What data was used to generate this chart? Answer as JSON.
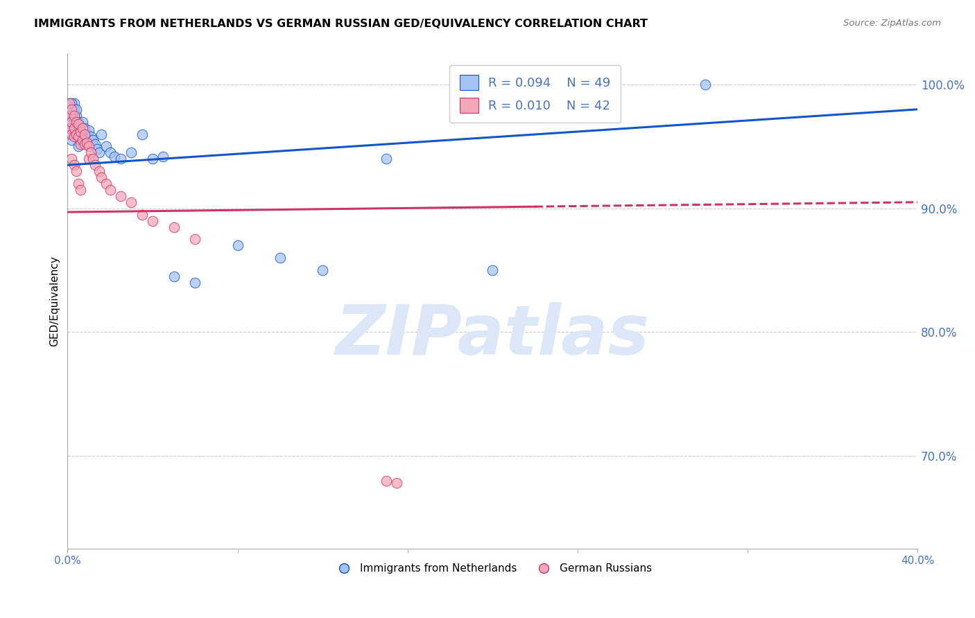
{
  "title": "IMMIGRANTS FROM NETHERLANDS VS GERMAN RUSSIAN GED/EQUIVALENCY CORRELATION CHART",
  "source": "Source: ZipAtlas.com",
  "ylabel": "GED/Equivalency",
  "legend_blue_r": "R = 0.094",
  "legend_blue_n": "N = 49",
  "legend_pink_r": "R = 0.010",
  "legend_pink_n": "N = 42",
  "legend_label_blue": "Immigrants from Netherlands",
  "legend_label_pink": "German Russians",
  "blue_color": "#a4c2f4",
  "pink_color": "#f4a7b9",
  "trend_blue_color": "#1155cc",
  "trend_pink_color": "#cc3366",
  "background_color": "#ffffff",
  "blue_scatter_x": [
    0.001,
    0.001,
    0.002,
    0.002,
    0.002,
    0.003,
    0.003,
    0.003,
    0.004,
    0.004,
    0.005,
    0.005,
    0.005,
    0.006,
    0.006,
    0.007,
    0.007,
    0.008,
    0.008,
    0.009,
    0.009,
    0.01,
    0.01,
    0.011,
    0.012,
    0.013,
    0.014,
    0.015,
    0.016,
    0.018,
    0.02,
    0.022,
    0.025,
    0.03,
    0.035,
    0.04,
    0.045,
    0.05,
    0.06,
    0.08,
    0.1,
    0.12,
    0.15,
    0.2,
    0.001,
    0.002,
    0.003,
    0.004,
    0.3
  ],
  "blue_scatter_y": [
    0.97,
    0.96,
    0.975,
    0.965,
    0.955,
    0.985,
    0.975,
    0.965,
    0.975,
    0.965,
    0.97,
    0.96,
    0.95,
    0.965,
    0.955,
    0.97,
    0.96,
    0.965,
    0.958,
    0.96,
    0.952,
    0.963,
    0.955,
    0.958,
    0.955,
    0.952,
    0.948,
    0.945,
    0.96,
    0.95,
    0.945,
    0.942,
    0.94,
    0.945,
    0.96,
    0.94,
    0.942,
    0.845,
    0.84,
    0.87,
    0.86,
    0.85,
    0.94,
    0.85,
    0.985,
    0.985,
    0.98,
    0.98,
    1.0
  ],
  "pink_scatter_x": [
    0.001,
    0.001,
    0.001,
    0.002,
    0.002,
    0.002,
    0.003,
    0.003,
    0.003,
    0.004,
    0.004,
    0.005,
    0.005,
    0.006,
    0.006,
    0.007,
    0.007,
    0.008,
    0.008,
    0.009,
    0.01,
    0.01,
    0.011,
    0.012,
    0.013,
    0.015,
    0.016,
    0.018,
    0.02,
    0.025,
    0.03,
    0.035,
    0.04,
    0.05,
    0.06,
    0.15,
    0.155,
    0.002,
    0.003,
    0.004,
    0.005,
    0.006
  ],
  "pink_scatter_y": [
    0.985,
    0.975,
    0.965,
    0.98,
    0.97,
    0.96,
    0.975,
    0.965,
    0.958,
    0.97,
    0.96,
    0.968,
    0.958,
    0.962,
    0.952,
    0.965,
    0.955,
    0.96,
    0.952,
    0.953,
    0.95,
    0.94,
    0.945,
    0.94,
    0.935,
    0.93,
    0.925,
    0.92,
    0.915,
    0.91,
    0.905,
    0.895,
    0.89,
    0.885,
    0.875,
    0.68,
    0.678,
    0.94,
    0.935,
    0.93,
    0.92,
    0.915
  ],
  "xmin": 0.0,
  "xmax": 0.4,
  "ymin": 0.625,
  "ymax": 1.025,
  "ytick_values": [
    0.7,
    0.8,
    0.9,
    1.0
  ],
  "xtick_values": [
    0.0,
    0.4
  ],
  "title_fontsize": 11.5,
  "source_fontsize": 9.5,
  "axis_color": "#4472c4",
  "watermark_text": "ZIPatlas",
  "watermark_color": "#dce8f8",
  "watermark_fontsize": 72,
  "blue_trend_x0": 0.0,
  "blue_trend_x1": 0.4,
  "blue_trend_y0": 0.935,
  "blue_trend_y1": 0.98,
  "pink_trend_x0": 0.0,
  "pink_trend_x1": 0.4,
  "pink_trend_y0": 0.897,
  "pink_trend_y1": 0.905
}
